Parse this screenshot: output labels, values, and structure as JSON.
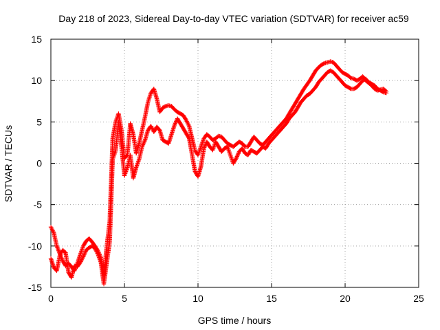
{
  "chart_data": {
    "type": "scatter",
    "title": "Day 218 of 2023, Sidereal Day-to-day VTEC variation (SDTVAR) for receiver ac59",
    "xlabel": "GPS time / hours",
    "ylabel": "SDTVAR / TECUs",
    "xlim": [
      0,
      25
    ],
    "ylim": [
      -15,
      15
    ],
    "xticks": [
      0,
      5,
      10,
      15,
      20,
      25
    ],
    "xtick_labels": [
      "0",
      "5",
      "10",
      "15",
      "20",
      "25"
    ],
    "yticks": [
      -15,
      -10,
      -5,
      0,
      5,
      10,
      15
    ],
    "ytick_labels": [
      "-15",
      "-10",
      "-5",
      "0",
      "5",
      "10",
      "15"
    ],
    "grid": true,
    "marker": "+",
    "series": [
      {
        "name": "SDTVAR",
        "color": "#ff0000",
        "trace_a": {
          "x": [
            0.0,
            0.2,
            0.4,
            0.6,
            0.8,
            1.0,
            1.2,
            1.4,
            1.6,
            1.8,
            2.0,
            2.2,
            2.4,
            2.6,
            2.8,
            3.0,
            3.2,
            3.4,
            3.6,
            3.8,
            4.0,
            4.2,
            4.4,
            4.6,
            4.8,
            5.0,
            5.2,
            5.4,
            5.6,
            5.8,
            6.0,
            6.2,
            6.4,
            6.6,
            6.8,
            7.0,
            7.2,
            7.4,
            7.6,
            7.8,
            8.0,
            8.2,
            8.4,
            8.6,
            8.8,
            9.0,
            9.2,
            9.4,
            9.6,
            9.8,
            10.0,
            10.2,
            10.4,
            10.6,
            10.8,
            11.0,
            11.2,
            11.4,
            11.6,
            11.8,
            12.0,
            12.2,
            12.4,
            12.6,
            12.8,
            13.0,
            13.2,
            13.4,
            13.6,
            13.8,
            14.0,
            14.2,
            14.4,
            14.6,
            14.8,
            15.0,
            15.2,
            15.4,
            15.6,
            15.8,
            16.0,
            16.2,
            16.4,
            16.6,
            16.8,
            17.0,
            17.2,
            17.4,
            17.6,
            17.8,
            18.0,
            18.2,
            18.4,
            18.6,
            18.8,
            19.0,
            19.2,
            19.4,
            19.6,
            19.8,
            20.0,
            20.2,
            20.4,
            20.6,
            20.8,
            21.0,
            21.2,
            21.4,
            21.6,
            21.8,
            22.0,
            22.2,
            22.4,
            22.6,
            22.8
          ],
          "y": [
            -7.7,
            -8.4,
            -10.0,
            -10.9,
            -11.8,
            -12.4,
            -12.1,
            -12.5,
            -13.0,
            -12.1,
            -11.0,
            -10.0,
            -9.4,
            -9.1,
            -9.5,
            -10.0,
            -10.6,
            -11.4,
            -13.5,
            -10.0,
            -7.0,
            3.0,
            5.0,
            6.0,
            4.0,
            0.6,
            1.0,
            4.8,
            3.5,
            1.2,
            2.4,
            4.0,
            5.6,
            7.4,
            8.5,
            9.0,
            7.8,
            6.2,
            6.7,
            6.9,
            7.0,
            6.9,
            6.5,
            6.2,
            6.0,
            5.8,
            5.2,
            4.5,
            3.0,
            1.5,
            1.0,
            2.0,
            3.0,
            3.5,
            3.2,
            2.8,
            3.0,
            3.3,
            3.2,
            2.8,
            2.4,
            2.2,
            2.0,
            2.3,
            2.6,
            2.4,
            2.0,
            2.0,
            2.6,
            3.2,
            2.8,
            2.4,
            2.2,
            2.6,
            3.0,
            3.4,
            3.8,
            4.2,
            4.6,
            5.0,
            5.4,
            6.0,
            6.6,
            7.2,
            7.8,
            8.4,
            9.0,
            9.5,
            10.0,
            10.6,
            11.2,
            11.6,
            11.9,
            12.1,
            12.2,
            12.3,
            12.2,
            11.8,
            11.4,
            11.0,
            10.8,
            10.6,
            10.3,
            10.2,
            10.0,
            10.2,
            10.5,
            10.0,
            9.7,
            9.4,
            9.0,
            8.8,
            8.9,
            9.0,
            8.7
          ]
        },
        "trace_b": {
          "x": [
            0.0,
            0.2,
            0.4,
            0.6,
            0.8,
            1.0,
            1.2,
            1.4,
            1.6,
            1.8,
            2.0,
            2.2,
            2.4,
            2.6,
            2.8,
            3.0,
            3.2,
            3.4,
            3.6,
            3.8,
            4.0,
            4.2,
            4.4,
            4.6,
            4.8,
            5.0,
            5.2,
            5.4,
            5.6,
            5.8,
            6.0,
            6.2,
            6.4,
            6.6,
            6.8,
            7.0,
            7.2,
            7.4,
            7.6,
            7.8,
            8.0,
            8.2,
            8.4,
            8.6,
            8.8,
            9.0,
            9.2,
            9.4,
            9.6,
            9.8,
            10.0,
            10.2,
            10.4,
            10.6,
            10.8,
            11.0,
            11.2,
            11.4,
            11.6,
            11.8,
            12.0,
            12.2,
            12.4,
            12.6,
            12.8,
            13.0,
            13.2,
            13.4,
            13.6,
            13.8,
            14.0,
            14.2,
            14.4,
            14.6,
            14.8,
            15.0,
            15.2,
            15.4,
            15.6,
            15.8,
            16.0,
            16.2,
            16.4,
            16.6,
            16.8,
            17.0,
            17.2,
            17.4,
            17.6,
            17.8,
            18.0,
            18.2,
            18.4,
            18.6,
            18.8,
            19.0,
            19.2,
            19.4,
            19.6,
            19.8,
            20.0,
            20.2,
            20.4,
            20.6,
            20.8,
            21.0,
            21.2,
            21.4,
            21.6,
            21.8,
            22.0,
            22.2,
            22.4,
            22.6,
            22.8
          ],
          "y": [
            -11.5,
            -12.6,
            -13.0,
            -11.2,
            -10.5,
            -10.8,
            -13.2,
            -13.8,
            -12.4,
            -12.5,
            -12.0,
            -11.3,
            -10.5,
            -10.2,
            -10.0,
            -10.3,
            -11.0,
            -12.0,
            -14.6,
            -12.0,
            -9.5,
            0.5,
            1.5,
            5.0,
            2.0,
            -1.5,
            -0.5,
            1.0,
            -1.8,
            -0.5,
            0.5,
            2.0,
            2.8,
            4.0,
            4.5,
            3.8,
            4.4,
            4.0,
            2.8,
            2.6,
            2.4,
            3.5,
            4.6,
            5.4,
            4.8,
            4.2,
            3.6,
            3.0,
            1.0,
            -1.0,
            -1.6,
            -0.4,
            1.8,
            2.6,
            2.0,
            1.6,
            2.6,
            2.0,
            1.4,
            1.8,
            2.0,
            1.0,
            0.0,
            0.6,
            1.4,
            1.8,
            1.2,
            1.0,
            1.6,
            1.4,
            1.2,
            1.6,
            2.0,
            1.8,
            2.4,
            2.8,
            3.2,
            3.6,
            4.0,
            4.4,
            4.8,
            5.4,
            5.8,
            6.2,
            6.8,
            7.4,
            7.8,
            8.2,
            8.4,
            8.8,
            9.2,
            9.8,
            10.2,
            10.6,
            11.0,
            11.2,
            11.0,
            10.6,
            10.2,
            9.8,
            9.4,
            9.2,
            9.0,
            9.0,
            9.2,
            9.6,
            10.0,
            10.2,
            9.8,
            9.6,
            9.4,
            9.0,
            8.8,
            8.6,
            8.5
          ]
        }
      }
    ]
  }
}
